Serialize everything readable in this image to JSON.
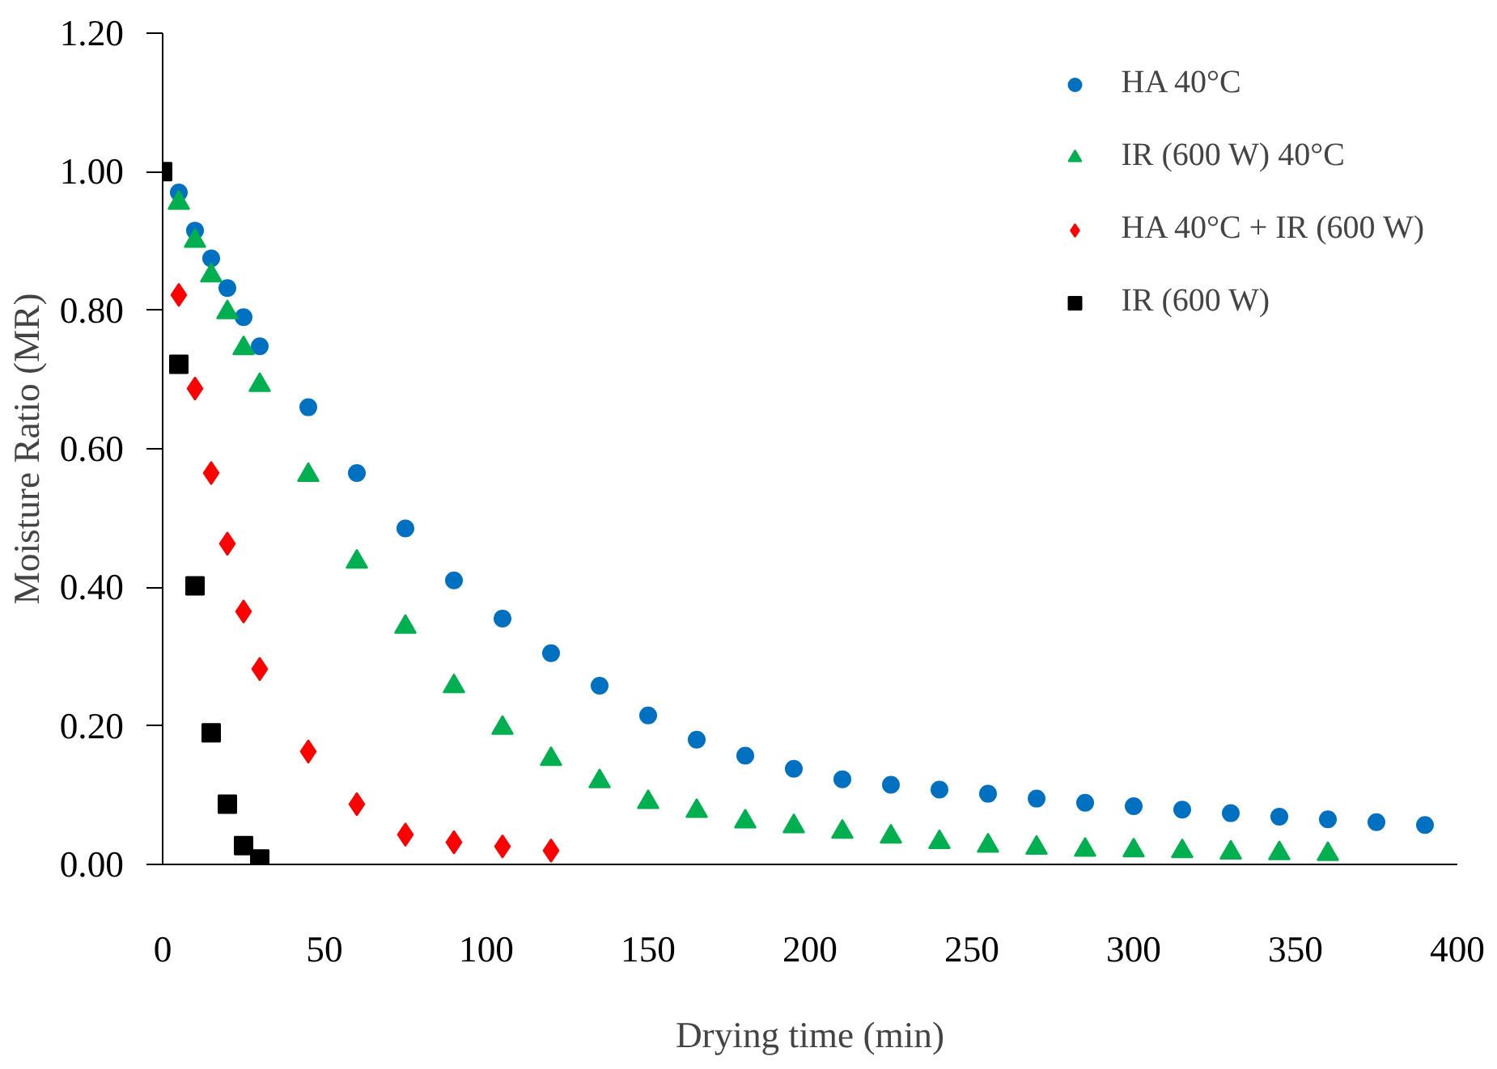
{
  "chart_data": {
    "type": "scatter",
    "xlabel": "Drying time (min)",
    "ylabel": "Moisture Ratio (MR)",
    "xlim": [
      0,
      400
    ],
    "xticks": [
      0,
      50,
      100,
      150,
      200,
      250,
      300,
      350,
      400
    ],
    "ylim": [
      0,
      1.2
    ],
    "yticks": [
      {
        "value": 0,
        "label": "0.00"
      },
      {
        "value": 0.2,
        "label": "0.20"
      },
      {
        "value": 0.4,
        "label": "0.40"
      },
      {
        "value": 0.6,
        "label": "0.60"
      },
      {
        "value": 0.8,
        "label": "0.80"
      },
      {
        "value": 1.0,
        "label": "1.00"
      },
      {
        "value": 1.2,
        "label": "1.20"
      }
    ],
    "grid": false,
    "legend": "top right",
    "series": [
      {
        "name": "HA 40°C",
        "color": "#0070c0",
        "marker": "circle",
        "x": [
          5,
          10,
          15,
          20,
          25,
          30,
          45,
          60,
          75,
          90,
          105,
          120,
          135,
          150,
          165,
          180,
          195,
          210,
          225,
          240,
          255,
          270,
          285,
          300,
          315,
          330,
          345,
          360,
          375,
          390
        ],
        "values": [
          0.97,
          0.915,
          0.875,
          0.832,
          0.79,
          0.748,
          0.66,
          0.565,
          0.485,
          0.41,
          0.355,
          0.305,
          0.258,
          0.215,
          0.18,
          0.157,
          0.138,
          0.123,
          0.115,
          0.108,
          0.102,
          0.095,
          0.089,
          0.084,
          0.079,
          0.074,
          0.069,
          0.065,
          0.061,
          0.057
        ]
      },
      {
        "name": "IR (600 W) 40°C",
        "color": "#00b050",
        "marker": "triangle",
        "x": [
          5,
          10,
          15,
          20,
          25,
          30,
          45,
          60,
          75,
          90,
          105,
          120,
          135,
          150,
          165,
          180,
          195,
          210,
          225,
          240,
          255,
          270,
          285,
          300,
          315,
          330,
          345,
          360
        ],
        "values": [
          0.955,
          0.9,
          0.85,
          0.797,
          0.745,
          0.692,
          0.562,
          0.437,
          0.343,
          0.257,
          0.197,
          0.152,
          0.12,
          0.09,
          0.077,
          0.062,
          0.055,
          0.047,
          0.04,
          0.032,
          0.027,
          0.024,
          0.021,
          0.02,
          0.019,
          0.017,
          0.016,
          0.015
        ]
      },
      {
        "name": "HA 40°C + IR (600 W)",
        "color": "#ff0000",
        "marker": "diamond",
        "x": [
          5,
          10,
          15,
          20,
          25,
          30,
          45,
          60,
          75,
          90,
          105,
          120
        ],
        "values": [
          0.822,
          0.687,
          0.565,
          0.463,
          0.365,
          0.282,
          0.163,
          0.087,
          0.043,
          0.032,
          0.026,
          0.02
        ]
      },
      {
        "name": "IR (600 W)",
        "color": "#000000",
        "marker": "square",
        "x": [
          0,
          5,
          10,
          15,
          20,
          25,
          30
        ],
        "values": [
          1.0,
          0.722,
          0.402,
          0.19,
          0.087,
          0.027,
          0.008
        ]
      }
    ]
  }
}
